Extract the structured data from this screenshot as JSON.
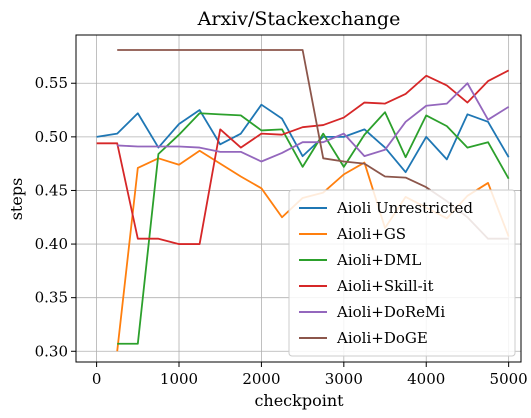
{
  "chart_data": {
    "type": "line",
    "title": "Arxiv/Stackexchange",
    "xlabel": "checkpoint",
    "ylabel": "steps",
    "xlim": [
      -250,
      5150
    ],
    "ylim": [
      0.29,
      0.595
    ],
    "xticks": [
      0,
      1000,
      2000,
      3000,
      4000,
      5000
    ],
    "yticks": [
      0.3,
      0.35,
      0.4,
      0.45,
      0.5,
      0.55
    ],
    "xtick_labels": [
      "0",
      "1000",
      "2000",
      "3000",
      "4000",
      "5000"
    ],
    "ytick_labels": [
      "0.30",
      "0.35",
      "0.40",
      "0.45",
      "0.50",
      "0.55"
    ],
    "grid": true,
    "legend_position": "lower-right",
    "series": [
      {
        "name": "Aioli Unrestricted",
        "color": "#1f77b4",
        "x": [
          0,
          250,
          500,
          750,
          1000,
          1250,
          1500,
          1750,
          2000,
          2250,
          2500,
          2750,
          3000,
          3250,
          3500,
          3750,
          4000,
          4250,
          4500,
          4750,
          5000
        ],
        "y": [
          0.5,
          0.503,
          0.522,
          0.49,
          0.512,
          0.525,
          0.493,
          0.503,
          0.53,
          0.517,
          0.482,
          0.5,
          0.5,
          0.507,
          0.49,
          0.467,
          0.5,
          0.479,
          0.521,
          0.514,
          0.481
        ]
      },
      {
        "name": "Aioli+GS",
        "color": "#ff7f0e",
        "x": [
          250,
          500,
          750,
          1000,
          1250,
          1500,
          1750,
          2000,
          2250,
          2500,
          2750,
          3000,
          3250,
          3500,
          3750,
          4000,
          4250,
          4500,
          4750,
          5000
        ],
        "y": [
          0.3,
          0.471,
          0.48,
          0.474,
          0.487,
          0.475,
          0.463,
          0.452,
          0.425,
          0.443,
          0.448,
          0.465,
          0.476,
          0.415,
          0.444,
          0.434,
          0.424,
          0.445,
          0.457,
          0.407
        ]
      },
      {
        "name": "Aioli+DML",
        "color": "#2ca02c",
        "x": [
          250,
          500,
          750,
          1000,
          1250,
          1500,
          1750,
          2000,
          2250,
          2500,
          2750,
          3000,
          3250,
          3500,
          3750,
          4000,
          4250,
          4500,
          4750,
          5000
        ],
        "y": [
          0.307,
          0.307,
          0.484,
          0.502,
          0.522,
          0.521,
          0.52,
          0.506,
          0.507,
          0.472,
          0.503,
          0.472,
          0.502,
          0.523,
          0.481,
          0.52,
          0.51,
          0.49,
          0.495,
          0.461
        ]
      },
      {
        "name": "Aioli+Skill-it",
        "color": "#d62728",
        "x": [
          0,
          250,
          500,
          750,
          1000,
          1250,
          1500,
          1750,
          2000,
          2250,
          2500,
          2750,
          3000,
          3250,
          3500,
          3750,
          4000,
          4250,
          4500,
          4750,
          5000
        ],
        "y": [
          0.494,
          0.494,
          0.405,
          0.405,
          0.4,
          0.4,
          0.507,
          0.49,
          0.503,
          0.502,
          0.509,
          0.511,
          0.518,
          0.532,
          0.531,
          0.54,
          0.557,
          0.548,
          0.532,
          0.552,
          0.562
        ]
      },
      {
        "name": "Aioli+DoReMi",
        "color": "#9467bd",
        "x": [
          250,
          500,
          750,
          1000,
          1250,
          1500,
          1750,
          2000,
          2250,
          2500,
          2750,
          3000,
          3250,
          3500,
          3750,
          4000,
          4250,
          4500,
          4750,
          5000
        ],
        "y": [
          0.492,
          0.491,
          0.491,
          0.491,
          0.49,
          0.486,
          0.486,
          0.477,
          0.485,
          0.495,
          0.495,
          0.503,
          0.482,
          0.488,
          0.514,
          0.529,
          0.531,
          0.55,
          0.516,
          0.528
        ]
      },
      {
        "name": "Aioli+DoGE",
        "color": "#8c564b",
        "x": [
          250,
          500,
          750,
          1000,
          1250,
          1500,
          1750,
          2000,
          2250,
          2500,
          2750,
          3000,
          3250,
          3500,
          3750,
          4000,
          4250,
          4500,
          4750,
          5000
        ],
        "y": [
          0.581,
          0.581,
          0.581,
          0.581,
          0.581,
          0.581,
          0.581,
          0.581,
          0.581,
          0.581,
          0.48,
          0.477,
          0.475,
          0.463,
          0.462,
          0.453,
          0.44,
          0.425,
          0.405,
          0.405
        ]
      }
    ]
  }
}
